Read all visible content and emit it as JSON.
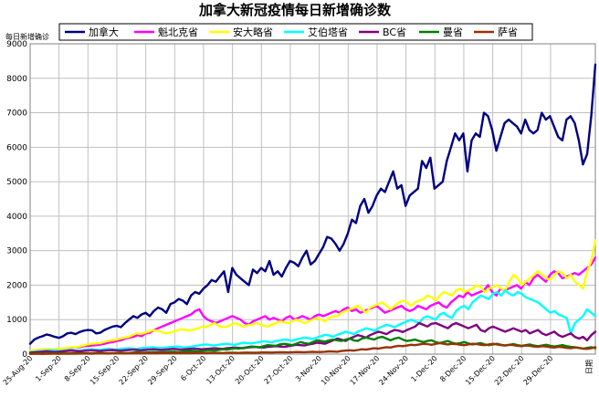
{
  "chart_data": {
    "type": "line",
    "title": "加拿大新冠疫情每日新增确诊数",
    "ylabel": "每日新增确诊",
    "xlabel_corner": "日期",
    "ylim": [
      0,
      9000
    ],
    "yticks": [
      0,
      1000,
      2000,
      3000,
      4000,
      5000,
      6000,
      7000,
      8000,
      9000
    ],
    "x_start": "25-Aug-20",
    "x_end": "4-Jan-21",
    "xticks": [
      "25-Aug-20",
      "1-Sep-20",
      "8-Sep-20",
      "15-Sep-20",
      "22-Sep-20",
      "29-Sep-20",
      "6-Oct-20",
      "13-Oct-20",
      "20-Oct-20",
      "27-Oct-20",
      "3-Nov-20",
      "10-Nov-20",
      "17-Nov-20",
      "24-Nov-20",
      "1-Dec-20",
      "8-Dec-20",
      "15-Dec-20",
      "22-Dec-20",
      "29-Dec-20"
    ],
    "grid": true,
    "legend_position": "top",
    "series": [
      {
        "name": "加拿大",
        "color": "#000080",
        "values": [
          300,
          420,
          480,
          520,
          570,
          540,
          500,
          470,
          520,
          600,
          620,
          580,
          640,
          680,
          700,
          690,
          600,
          620,
          700,
          750,
          800,
          820,
          780,
          900,
          1000,
          1100,
          1050,
          1150,
          1200,
          1100,
          1250,
          1350,
          1300,
          1200,
          1450,
          1500,
          1600,
          1550,
          1450,
          1700,
          1800,
          1750,
          1900,
          2000,
          2150,
          2100,
          2250,
          2400,
          1800,
          2500,
          2300,
          2200,
          2100,
          2000,
          2450,
          2350,
          2500,
          2400,
          2700,
          2300,
          2400,
          2250,
          2500,
          2700,
          2650,
          2550,
          2800,
          3000,
          2600,
          2700,
          2900,
          3100,
          3400,
          3350,
          3200,
          3000,
          3200,
          3500,
          3900,
          3800,
          4300,
          4500,
          4100,
          4300,
          4600,
          4800,
          4700,
          5000,
          5300,
          4800,
          4900,
          4300,
          4600,
          4700,
          4800,
          5600,
          5400,
          5700,
          4800,
          4900,
          5000,
          5600,
          6000,
          6400,
          6200,
          6400,
          5300,
          6200,
          6400,
          6300,
          7000,
          6900,
          6500,
          5900,
          6300,
          6700,
          6800,
          6700,
          6600,
          6400,
          6800,
          6500,
          6400,
          6500,
          7000,
          6800,
          6900,
          6600,
          6300,
          6200,
          6800,
          6900,
          6700,
          6200,
          5500,
          5800,
          6900,
          8400
        ]
      },
      {
        "name": "魁北克省",
        "color": "#ff00ff",
        "values": [
          80,
          100,
          120,
          130,
          140,
          130,
          120,
          140,
          160,
          170,
          180,
          190,
          200,
          230,
          240,
          250,
          260,
          280,
          300,
          330,
          350,
          380,
          400,
          450,
          480,
          500,
          550,
          520,
          600,
          620,
          700,
          750,
          800,
          850,
          900,
          950,
          1000,
          1050,
          1100,
          1150,
          1250,
          1300,
          1100,
          1000,
          950,
          900,
          950,
          1000,
          1050,
          1100,
          1050,
          1000,
          900,
          850,
          950,
          1000,
          1050,
          1100,
          1000,
          1050,
          1000,
          950,
          1050,
          1100,
          1000,
          1050,
          1100,
          1050,
          1000,
          1100,
          1150,
          1100,
          1150,
          1200,
          1250,
          1200,
          1300,
          1350,
          1250,
          1300,
          1200,
          1250,
          1300,
          1350,
          1400,
          1300,
          1200,
          1250,
          1300,
          1350,
          1400,
          1300,
          1250,
          1300,
          1400,
          1350,
          1300,
          1400,
          1450,
          1500,
          1400,
          1350,
          1500,
          1600,
          1700,
          1650,
          1800,
          1700,
          1750,
          1800,
          1850,
          2000,
          1800,
          1700,
          1900,
          1850,
          1900,
          1950,
          2000,
          1900,
          2100,
          2000,
          2200,
          2300,
          2200,
          2100,
          2300,
          2400,
          2350,
          2200,
          2250,
          2300,
          2350,
          2300,
          2400,
          2500,
          2600,
          2800
        ]
      },
      {
        "name": "安大略省",
        "color": "#ffff00",
        "values": [
          100,
          110,
          120,
          130,
          150,
          140,
          130,
          150,
          160,
          180,
          200,
          190,
          220,
          250,
          280,
          300,
          310,
          320,
          350,
          380,
          400,
          420,
          450,
          480,
          500,
          550,
          600,
          580,
          620,
          650,
          700,
          680,
          650,
          600,
          620,
          650,
          700,
          720,
          700,
          680,
          720,
          750,
          800,
          780,
          850,
          900,
          820,
          780,
          800,
          850,
          900,
          850,
          800,
          830,
          850,
          900,
          880,
          820,
          800,
          850,
          900,
          950,
          920,
          900,
          950,
          1000,
          950,
          900,
          950,
          1000,
          1050,
          1000,
          950,
          1050,
          1100,
          1100,
          1200,
          1250,
          1300,
          1350,
          1400,
          1300,
          1200,
          1350,
          1400,
          1450,
          1500,
          1400,
          1300,
          1400,
          1500,
          1550,
          1500,
          1400,
          1500,
          1550,
          1600,
          1700,
          1650,
          1550,
          1700,
          1800,
          1750,
          1700,
          1850,
          1900,
          1800,
          1850,
          1900,
          2000,
          1950,
          1800,
          1900,
          1950,
          2000,
          1900,
          1850,
          2100,
          2300,
          2200,
          2000,
          2100,
          2200,
          2300,
          2400,
          2300,
          2200,
          2150,
          2300,
          2400,
          2350,
          2200,
          2300,
          2100,
          2000,
          1900,
          2400,
          2700,
          3300
        ]
      },
      {
        "name": "艾伯塔省",
        "color": "#00ffff",
        "values": [
          60,
          70,
          80,
          90,
          100,
          110,
          100,
          90,
          100,
          110,
          120,
          110,
          100,
          120,
          130,
          140,
          130,
          120,
          140,
          150,
          140,
          130,
          150,
          160,
          170,
          160,
          150,
          170,
          180,
          190,
          200,
          180,
          170,
          190,
          200,
          210,
          220,
          200,
          190,
          210,
          230,
          250,
          270,
          280,
          260,
          250,
          270,
          290,
          300,
          280,
          270,
          300,
          330,
          320,
          310,
          330,
          350,
          370,
          360,
          340,
          380,
          400,
          420,
          410,
          390,
          430,
          450,
          480,
          460,
          440,
          480,
          520,
          560,
          540,
          500,
          560,
          600,
          650,
          620,
          580,
          650,
          700,
          750,
          720,
          680,
          750,
          800,
          850,
          820,
          780,
          850,
          900,
          950,
          1000,
          950,
          900,
          1050,
          1100,
          1050,
          1000,
          1150,
          1200,
          1100,
          1050,
          1250,
          1350,
          1400,
          1300,
          1500,
          1600,
          1700,
          1650,
          1600,
          1750,
          1800,
          1700,
          1850,
          1750,
          1700,
          1800,
          1750,
          1650,
          1600,
          1550,
          1500,
          1400,
          1300,
          1200,
          1250,
          1150,
          1100,
          1050,
          600,
          900,
          1000,
          1100,
          1300,
          1200,
          1100
        ]
      },
      {
        "name": "BC省",
        "color": "#800080",
        "values": [
          40,
          50,
          60,
          70,
          80,
          70,
          60,
          70,
          80,
          90,
          100,
          90,
          80,
          90,
          100,
          110,
          100,
          90,
          100,
          110,
          120,
          110,
          100,
          110,
          120,
          130,
          120,
          110,
          120,
          130,
          140,
          130,
          120,
          130,
          140,
          150,
          140,
          130,
          140,
          150,
          160,
          150,
          140,
          150,
          160,
          170,
          160,
          150,
          170,
          180,
          190,
          180,
          170,
          190,
          200,
          210,
          200,
          190,
          210,
          220,
          230,
          220,
          210,
          230,
          250,
          270,
          260,
          250,
          280,
          300,
          330,
          320,
          300,
          350,
          400,
          450,
          420,
          380,
          450,
          500,
          550,
          520,
          480,
          550,
          600,
          650,
          620,
          580,
          650,
          700,
          680,
          640,
          700,
          750,
          800,
          900,
          850,
          800,
          880,
          900,
          850,
          800,
          750,
          850,
          900,
          850,
          800,
          750,
          800,
          850,
          700,
          650,
          750,
          800,
          750,
          700,
          650,
          700,
          750,
          700,
          650,
          700,
          600,
          650,
          700,
          600,
          550,
          600,
          650,
          550,
          500,
          550,
          600,
          500,
          450,
          500,
          400,
          550,
          650
        ]
      },
      {
        "name": "曼省",
        "color": "#008000",
        "values": [
          10,
          15,
          20,
          15,
          10,
          15,
          20,
          25,
          20,
          15,
          20,
          25,
          30,
          25,
          20,
          25,
          30,
          35,
          30,
          25,
          30,
          35,
          40,
          35,
          30,
          40,
          50,
          45,
          40,
          50,
          60,
          55,
          50,
          60,
          70,
          65,
          60,
          70,
          80,
          90,
          85,
          80,
          90,
          100,
          110,
          100,
          120,
          140,
          130,
          150,
          170,
          160,
          180,
          200,
          220,
          210,
          190,
          230,
          260,
          250,
          240,
          280,
          300,
          280,
          260,
          300,
          350,
          320,
          300,
          350,
          400,
          380,
          360,
          400,
          420,
          400,
          380,
          420,
          450,
          400,
          380,
          450,
          480,
          450,
          420,
          480,
          500,
          450,
          400,
          450,
          480,
          420,
          380,
          400,
          420,
          380,
          350,
          380,
          400,
          350,
          320,
          350,
          380,
          330,
          300,
          320,
          350,
          310,
          280,
          300,
          320,
          280,
          260,
          280,
          300,
          270,
          250,
          270,
          290,
          260,
          240,
          260,
          280,
          250,
          230,
          250,
          270,
          240,
          220,
          240,
          260,
          230,
          210,
          200,
          180,
          160,
          180,
          200,
          170
        ]
      },
      {
        "name": "萨省",
        "color": "#993300",
        "values": [
          5,
          10,
          8,
          6,
          10,
          12,
          10,
          8,
          12,
          15,
          12,
          10,
          15,
          18,
          15,
          12,
          18,
          20,
          18,
          15,
          20,
          22,
          20,
          18,
          22,
          25,
          22,
          20,
          25,
          28,
          25,
          22,
          28,
          30,
          28,
          25,
          30,
          32,
          30,
          28,
          32,
          35,
          32,
          30,
          35,
          38,
          35,
          32,
          38,
          40,
          38,
          35,
          40,
          45,
          42,
          40,
          45,
          50,
          48,
          45,
          50,
          55,
          52,
          50,
          55,
          60,
          58,
          55,
          60,
          65,
          62,
          60,
          70,
          80,
          75,
          70,
          90,
          100,
          110,
          100,
          120,
          140,
          130,
          150,
          170,
          160,
          180,
          200,
          190,
          220,
          240,
          230,
          250,
          270,
          260,
          280,
          300,
          290,
          270,
          300,
          320,
          300,
          280,
          300,
          290,
          270,
          260,
          280,
          300,
          290,
          270,
          260,
          280,
          300,
          280,
          260,
          250,
          270,
          260,
          240,
          230,
          250,
          240,
          220,
          210,
          230,
          220,
          200,
          190,
          210,
          200,
          180,
          170,
          190,
          180,
          160,
          150,
          170,
          200
        ]
      }
    ]
  }
}
